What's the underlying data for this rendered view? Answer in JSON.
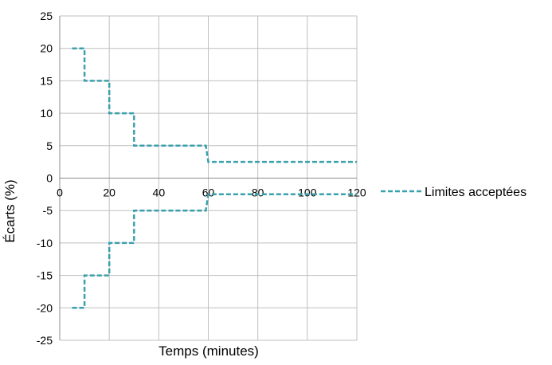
{
  "chart_data": {
    "type": "line",
    "title": "",
    "xlabel": "Temps (minutes)",
    "ylabel": "Écarts (%)",
    "xlim": [
      0,
      120
    ],
    "ylim": [
      -25,
      25
    ],
    "x_ticks": [
      0,
      20,
      40,
      60,
      80,
      100,
      120
    ],
    "y_ticks": [
      25,
      20,
      15,
      10,
      5,
      0,
      -5,
      -10,
      -15,
      -20,
      -25
    ],
    "grid": true,
    "legend_position": "right",
    "series_color": "#3aa0ad",
    "series": [
      {
        "name": "Limites acceptées",
        "style": "dashed",
        "segments": [
          [
            [
              5,
              20
            ],
            [
              10,
              20
            ],
            [
              10,
              15
            ],
            [
              20,
              15
            ],
            [
              20,
              10
            ],
            [
              30,
              10
            ],
            [
              30,
              5
            ],
            [
              59,
              5
            ],
            [
              60,
              2.5
            ],
            [
              120,
              2.5
            ]
          ],
          [
            [
              5,
              -20
            ],
            [
              10,
              -20
            ],
            [
              10,
              -15
            ],
            [
              20,
              -15
            ],
            [
              20,
              -10
            ],
            [
              30,
              -10
            ],
            [
              30,
              -5
            ],
            [
              59,
              -5
            ],
            [
              60,
              -2.5
            ],
            [
              120,
              -2.5
            ]
          ]
        ]
      }
    ]
  }
}
